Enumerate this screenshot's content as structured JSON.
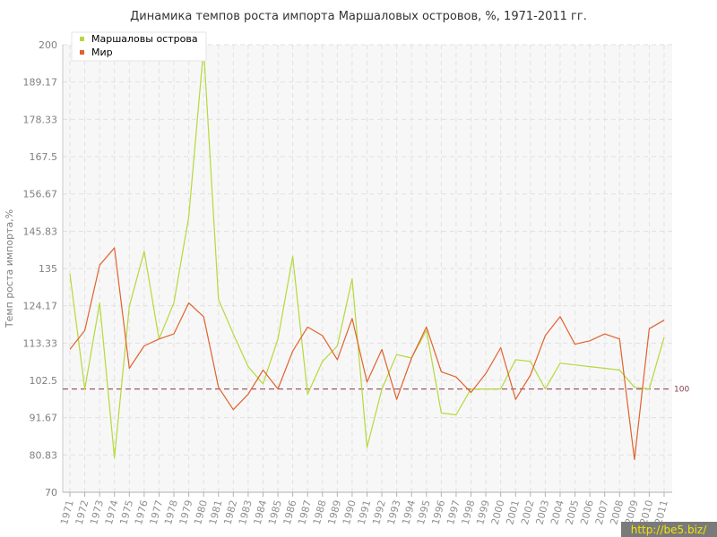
{
  "chart_data": {
    "type": "line",
    "title": "Динамика темпов роста импорта Маршаловых островов, %, 1971-2011 гг.",
    "xlabel": "",
    "ylabel": "Темп роста импорта,%",
    "ylim": [
      70,
      200
    ],
    "yticks": [
      "70",
      "80.83",
      "91.67",
      "102.5",
      "113.33",
      "124.17",
      "135",
      "145.83",
      "156.67",
      "167.5",
      "178.33",
      "189.17",
      "200"
    ],
    "categories": [
      "1971",
      "1972",
      "1973",
      "1974",
      "1975",
      "1976",
      "1977",
      "1978",
      "1979",
      "1980",
      "1981",
      "1982",
      "1983",
      "1984",
      "1985",
      "1986",
      "1987",
      "1988",
      "1989",
      "1990",
      "1991",
      "1992",
      "1993",
      "1994",
      "1995",
      "1996",
      "1997",
      "1998",
      "1999",
      "2000",
      "2001",
      "2002",
      "2003",
      "2004",
      "2005",
      "2006",
      "2007",
      "2008",
      "2009",
      "2010",
      "2011"
    ],
    "series": [
      {
        "name": "Маршаловы острова",
        "color": "#b5d93b",
        "values": [
          133.5,
          100,
          125,
          80,
          124,
          140,
          114.5,
          125,
          150,
          199,
          126,
          116,
          106.5,
          101.5,
          114.5,
          138.5,
          98.5,
          108,
          112.5,
          132,
          83,
          100,
          110,
          109,
          117,
          93,
          92.5,
          100,
          100,
          100,
          108.5,
          108,
          100,
          107.5,
          107,
          106.5,
          106,
          105.5,
          100.5,
          100,
          115
        ]
      },
      {
        "name": "Мир",
        "color": "#e0622e",
        "values": [
          111.5,
          117,
          136,
          141,
          106,
          112.5,
          114.5,
          116,
          125,
          121,
          100.5,
          94,
          98.5,
          105.5,
          100,
          111,
          118,
          115.5,
          108.5,
          120.5,
          102,
          111.5,
          97,
          109,
          118,
          105,
          103.5,
          99,
          104.5,
          112,
          97,
          104,
          115.5,
          121,
          113,
          114,
          116,
          114.5,
          79.5,
          117.5,
          120
        ]
      }
    ],
    "reference_line": {
      "value": 100,
      "label": "100",
      "color": "#9c5a6a"
    },
    "grid": true,
    "legend_position": "top-left"
  },
  "watermark": "http://be5.biz/"
}
